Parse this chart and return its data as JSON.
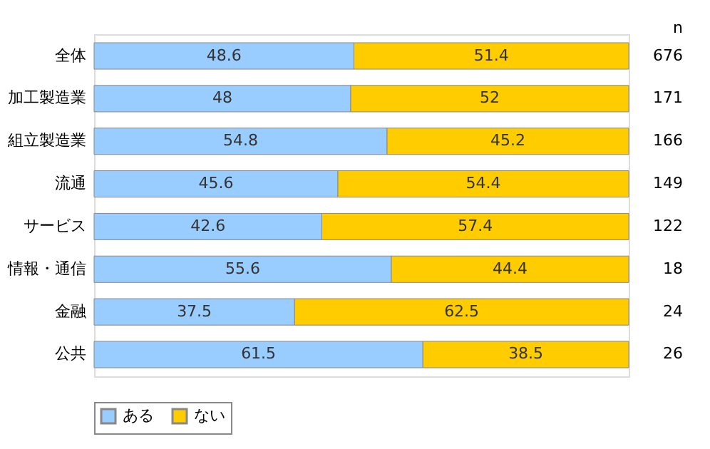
{
  "chart_data": {
    "type": "bar",
    "orientation": "horizontal",
    "stacked": true,
    "data_labels": true,
    "legend": "bottom",
    "categories": [
      "全体",
      "加工製造業",
      "組立製造業",
      "流通",
      "サービス",
      "情報・通信",
      "金融",
      "公共"
    ],
    "series": [
      {
        "name": "ある",
        "color": "#99ccff",
        "values": [
          48.6,
          48,
          54.8,
          45.6,
          42.6,
          55.6,
          37.5,
          61.5
        ]
      },
      {
        "name": "ない",
        "color": "#ffcc00",
        "values": [
          51.4,
          52,
          45.2,
          54.4,
          57.4,
          44.4,
          62.5,
          38.5
        ]
      }
    ],
    "annotations": [
      "n",
      "676",
      "171",
      "166",
      "149",
      "122",
      "18",
      "24",
      "26"
    ]
  }
}
